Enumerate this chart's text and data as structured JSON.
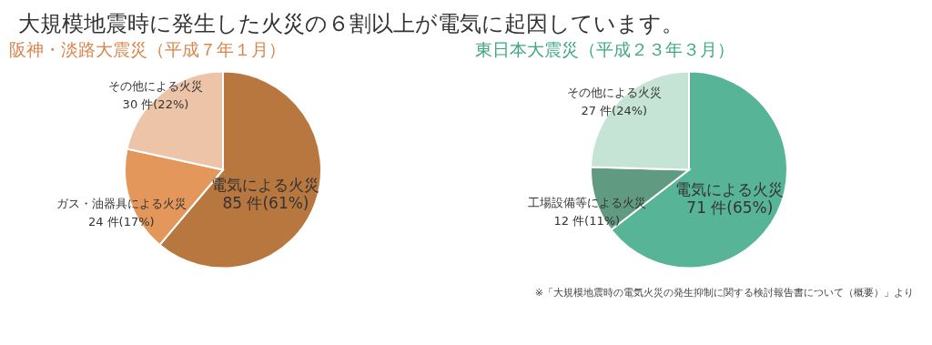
{
  "chart_data": [
    {
      "type": "pie",
      "title": "大規模地震時に発生した火災の６割以上が電気に起因しています。",
      "subtitle": "阪神・淡路大震災（平成７年１月）",
      "categories": [
        "電気による火災",
        "ガス・油器具による火災",
        "その他による火災"
      ],
      "values": [
        85,
        24,
        30
      ],
      "value_labels": [
        "85 件(61%)",
        "24 件(17%)",
        "30 件(22%)"
      ],
      "colors": [
        "#b8773f",
        "#e3975a",
        "#eec4a9"
      ]
    },
    {
      "type": "pie",
      "title": "東日本大震災（平成２３年３月）",
      "categories": [
        "電気による火災",
        "工場設備等による火災",
        "その他による火災"
      ],
      "values": [
        71,
        12,
        27
      ],
      "value_labels": [
        "71 件(65%)",
        "12 件(11%)",
        "27 件(24%)"
      ],
      "colors": [
        "#58b496",
        "#5f9a81",
        "#c6e4d6"
      ],
      "annotations": [
        "※「大規模地震時の電気火災の発生抑制に関する検討報告書について（概要）」より"
      ]
    }
  ]
}
